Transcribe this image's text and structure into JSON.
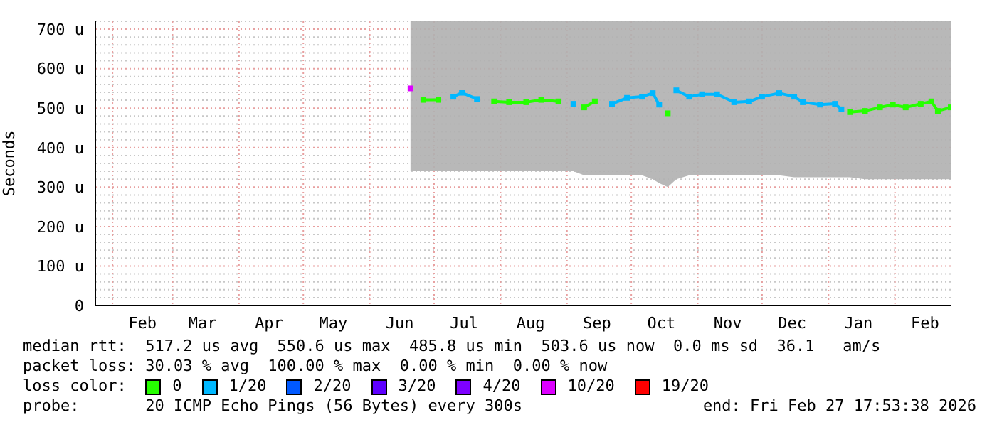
{
  "chart_data": {
    "type": "line",
    "ylabel": "Seconds",
    "legend_title": "loss color:",
    "legend": "bottom",
    "grid": true,
    "marker": "square",
    "line_style": "solid",
    "x": [
      "2025-06-20",
      "2025-06-26",
      "2025-07-03",
      "2025-07-10",
      "2025-07-14",
      "2025-07-21",
      "2025-07-29",
      "2025-08-05",
      "2025-08-13",
      "2025-08-20",
      "2025-08-28",
      "2025-09-04",
      "2025-09-09",
      "2025-09-14",
      "2025-09-22",
      "2025-09-29",
      "2025-10-06",
      "2025-10-11",
      "2025-10-14",
      "2025-10-18",
      "2025-10-22",
      "2025-10-28",
      "2025-11-03",
      "2025-11-10",
      "2025-11-18",
      "2025-11-25",
      "2025-12-01",
      "2025-12-09",
      "2025-12-16",
      "2025-12-20",
      "2025-12-28",
      "2026-01-04",
      "2026-01-07",
      "2026-01-11",
      "2026-01-18",
      "2026-01-25",
      "2026-01-31",
      "2026-02-06",
      "2026-02-13",
      "2026-02-18",
      "2026-02-21",
      "2026-02-27"
    ],
    "xlim": [
      "2025-01-24",
      "2026-02-27"
    ],
    "xticks": [
      {
        "value": "2025-02-01",
        "label": null
      },
      {
        "value": "2025-02-15",
        "label": "Feb"
      },
      {
        "value": "2025-03-01",
        "label": null
      },
      {
        "value": "2025-03-15",
        "label": "Mar"
      },
      {
        "value": "2025-04-01",
        "label": null
      },
      {
        "value": "2025-04-15",
        "label": "Apr"
      },
      {
        "value": "2025-05-01",
        "label": null
      },
      {
        "value": "2025-05-15",
        "label": "May"
      },
      {
        "value": "2025-06-01",
        "label": null
      },
      {
        "value": "2025-06-15",
        "label": "Jun"
      },
      {
        "value": "2025-07-01",
        "label": null
      },
      {
        "value": "2025-07-15",
        "label": "Jul"
      },
      {
        "value": "2025-08-01",
        "label": null
      },
      {
        "value": "2025-08-15",
        "label": "Aug"
      },
      {
        "value": "2025-09-01",
        "label": null
      },
      {
        "value": "2025-09-15",
        "label": "Sep"
      },
      {
        "value": "2025-10-01",
        "label": null
      },
      {
        "value": "2025-10-15",
        "label": "Oct"
      },
      {
        "value": "2025-11-01",
        "label": null
      },
      {
        "value": "2025-11-15",
        "label": "Nov"
      },
      {
        "value": "2025-12-01",
        "label": null
      },
      {
        "value": "2025-12-15",
        "label": "Dec"
      },
      {
        "value": "2026-01-01",
        "label": null
      },
      {
        "value": "2026-01-15",
        "label": "Jan"
      },
      {
        "value": "2026-02-01",
        "label": null
      },
      {
        "value": "2026-02-15",
        "label": "Feb"
      }
    ],
    "ylim": [
      0,
      720
    ],
    "yticks": [
      {
        "value": 0,
        "label": "0"
      },
      {
        "value": 20,
        "label": null
      },
      {
        "value": 40,
        "label": null
      },
      {
        "value": 60,
        "label": null
      },
      {
        "value": 80,
        "label": null
      },
      {
        "value": 100,
        "label": "100 u"
      },
      {
        "value": 120,
        "label": null
      },
      {
        "value": 140,
        "label": null
      },
      {
        "value": 160,
        "label": null
      },
      {
        "value": 180,
        "label": null
      },
      {
        "value": 200,
        "label": "200 u"
      },
      {
        "value": 220,
        "label": null
      },
      {
        "value": 240,
        "label": null
      },
      {
        "value": 260,
        "label": null
      },
      {
        "value": 280,
        "label": null
      },
      {
        "value": 300,
        "label": "300 u"
      },
      {
        "value": 320,
        "label": null
      },
      {
        "value": 340,
        "label": null
      },
      {
        "value": 360,
        "label": null
      },
      {
        "value": 380,
        "label": null
      },
      {
        "value": 400,
        "label": "400 u"
      },
      {
        "value": 420,
        "label": null
      },
      {
        "value": 440,
        "label": null
      },
      {
        "value": 460,
        "label": null
      },
      {
        "value": 480,
        "label": null
      },
      {
        "value": 500,
        "label": "500 u"
      },
      {
        "value": 520,
        "label": null
      },
      {
        "value": 540,
        "label": null
      },
      {
        "value": 560,
        "label": null
      },
      {
        "value": 580,
        "label": null
      },
      {
        "value": 600,
        "label": "600 u"
      },
      {
        "value": 620,
        "label": null
      },
      {
        "value": 640,
        "label": null
      },
      {
        "value": 660,
        "label": null
      },
      {
        "value": 680,
        "label": null
      },
      {
        "value": 700,
        "label": "700 u"
      },
      {
        "value": 720,
        "label": null
      }
    ],
    "series": [
      {
        "name": "0",
        "color": "#26ff00",
        "lower": [
          340,
          340,
          340,
          340,
          340,
          340,
          340,
          340,
          340,
          340,
          340,
          340,
          330,
          330,
          330,
          330,
          330,
          320,
          310,
          300,
          320,
          330,
          330,
          330,
          330,
          330,
          330,
          330,
          325,
          325,
          325,
          325,
          325,
          325,
          320,
          320,
          320,
          320,
          320,
          320,
          320,
          320
        ],
        "upper": [
          720,
          720,
          720,
          720,
          720,
          720,
          720,
          720,
          720,
          720,
          720,
          720,
          720,
          720,
          720,
          720,
          720,
          720,
          720,
          720,
          720,
          720,
          720,
          720,
          720,
          720,
          720,
          720,
          720,
          720,
          720,
          720,
          720,
          720,
          720,
          720,
          720,
          720,
          720,
          720,
          720,
          720
        ],
        "values": [
          null,
          521,
          521,
          null,
          null,
          null,
          517,
          515,
          515,
          521,
          517,
          null,
          502,
          517,
          null,
          null,
          null,
          null,
          null,
          487,
          null,
          null,
          null,
          null,
          null,
          null,
          null,
          null,
          null,
          null,
          null,
          null,
          null,
          490,
          493,
          502,
          509,
          502,
          511,
          517,
          493,
          502
        ]
      },
      {
        "name": "1/20",
        "color": "#00b8ff",
        "values": [
          null,
          null,
          null,
          529,
          539,
          523,
          null,
          null,
          null,
          null,
          null,
          511,
          null,
          null,
          511,
          526,
          529,
          538,
          509,
          null,
          545,
          529,
          535,
          535,
          515,
          517,
          529,
          538,
          529,
          515,
          509,
          511,
          497,
          null,
          null,
          null,
          null,
          null,
          null,
          null,
          null,
          null
        ]
      },
      {
        "name": "2/20",
        "color": "#0059ff",
        "values": [
          null,
          null,
          null,
          null,
          null,
          null,
          null,
          null,
          null,
          null,
          null,
          null,
          null,
          null,
          null,
          null,
          null,
          null,
          null,
          null,
          null,
          null,
          null,
          null,
          null,
          null,
          null,
          null,
          null,
          null,
          null,
          null,
          null,
          null,
          null,
          null,
          null,
          null,
          null,
          null,
          null,
          null
        ]
      },
      {
        "name": "3/20",
        "color": "#5e00ff",
        "values": [
          null,
          null,
          null,
          null,
          null,
          null,
          null,
          null,
          null,
          null,
          null,
          null,
          null,
          null,
          null,
          null,
          null,
          null,
          null,
          null,
          null,
          null,
          null,
          null,
          null,
          null,
          null,
          null,
          null,
          null,
          null,
          null,
          null,
          null,
          null,
          null,
          null,
          null,
          null,
          null,
          null,
          null
        ]
      },
      {
        "name": "4/20",
        "color": "#7e00ff",
        "values": [
          null,
          null,
          null,
          null,
          null,
          null,
          null,
          null,
          null,
          null,
          null,
          null,
          null,
          null,
          null,
          null,
          null,
          null,
          null,
          null,
          null,
          null,
          null,
          null,
          null,
          null,
          null,
          null,
          null,
          null,
          null,
          null,
          null,
          null,
          null,
          null,
          null,
          null,
          null,
          null,
          null,
          null
        ]
      },
      {
        "name": "10/20",
        "color": "#dd00ff",
        "values": [
          550,
          null,
          null,
          null,
          null,
          null,
          null,
          null,
          null,
          null,
          null,
          null,
          null,
          null,
          null,
          null,
          null,
          null,
          null,
          null,
          null,
          null,
          null,
          null,
          null,
          null,
          null,
          null,
          null,
          null,
          null,
          null,
          null,
          null,
          null,
          null,
          null,
          null,
          null,
          null,
          null,
          null
        ]
      },
      {
        "name": "19/20",
        "color": "#ff0000",
        "values": [
          null,
          null,
          null,
          null,
          null,
          null,
          null,
          null,
          null,
          null,
          null,
          null,
          null,
          null,
          null,
          null,
          null,
          null,
          null,
          null,
          null,
          null,
          null,
          null,
          null,
          null,
          null,
          null,
          null,
          null,
          null,
          null,
          null,
          null,
          null,
          null,
          null,
          null,
          null,
          null,
          null,
          null
        ]
      }
    ],
    "annotations": [
      "median rtt:  517.2 us avg  550.6 us max  485.8 us min  503.6 us now  0.0 ms sd  36.1   am/s",
      "packet loss: 30.03 % avg  100.00 % max  0.00 % min  0.00 % now",
      "probe:       20 ICMP Echo Pings (56 Bytes) every 300s",
      "end: Fri Feb 27 17:53:38 2026"
    ]
  }
}
